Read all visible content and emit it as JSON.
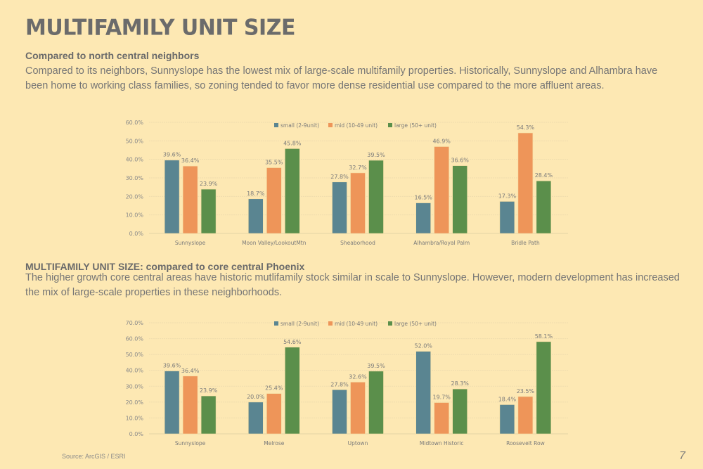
{
  "page": {
    "title": "MULTIFAMILY UNIT SIZE",
    "section1": {
      "heading": "Compared to north central neighbors",
      "text": "Compared to its neighbors, Sunnyslope has the lowest mix of large-scale multifamily properties. Historically, Sunnyslope and Alhambra have been home to working class families, so zoning tended to favor more dense residential use compared to the more affluent areas."
    },
    "section2": {
      "heading": "MULTIFAMILY UNIT SIZE: compared to core central Phoenix",
      "text": "The higher growth core central areas have historic mutlifamily stock similar in scale to Sunnyslope. However, modern development has increased the mix of large-scale properties in these neighborhoods."
    },
    "source": "Source: ArcGIS / ESRI",
    "page_number": "7"
  },
  "colors": {
    "small": "#5a8591",
    "mid": "#ee9559",
    "large": "#5b8f4b",
    "background": "#fde8b3"
  },
  "chart_data": [
    {
      "type": "bar",
      "title": "",
      "xlabel": "",
      "ylabel": "",
      "ylim": [
        0,
        60
      ],
      "yticks": [
        "0.0%",
        "10.0%",
        "20.0%",
        "30.0%",
        "40.0%",
        "50.0%",
        "60.0%"
      ],
      "ytick_values": [
        0,
        10,
        20,
        30,
        40,
        50,
        60
      ],
      "legend_position": "top-center",
      "grid": true,
      "categories": [
        "Sunnyslope",
        "Moon Valley/LookoutMtn",
        "Sheaborhood",
        "Alhambra/Royal Palm",
        "Bridle Path"
      ],
      "series": [
        {
          "name": "small (2-9unit)",
          "key": "small",
          "values": [
            39.6,
            18.7,
            27.8,
            16.5,
            17.3
          ],
          "labels": [
            "39.6%",
            "18.7%",
            "27.8%",
            "16.5%",
            "17.3%"
          ]
        },
        {
          "name": "mid (10-49 unit)",
          "key": "mid",
          "values": [
            36.4,
            35.5,
            32.7,
            46.9,
            54.3
          ],
          "labels": [
            "36.4%",
            "35.5%",
            "32.7%",
            "46.9%",
            "54.3%"
          ]
        },
        {
          "name": "large (50+ unit)",
          "key": "large",
          "values": [
            23.9,
            45.8,
            39.5,
            36.6,
            28.4
          ],
          "labels": [
            "23.9%",
            "45.8%",
            "39.5%",
            "36.6%",
            "28.4%"
          ]
        }
      ]
    },
    {
      "type": "bar",
      "title": "",
      "xlabel": "",
      "ylabel": "",
      "ylim": [
        0,
        70
      ],
      "yticks": [
        "0.0%",
        "10.0%",
        "20.0%",
        "30.0%",
        "40.0%",
        "50.0%",
        "60.0%",
        "70.0%"
      ],
      "ytick_values": [
        0,
        10,
        20,
        30,
        40,
        50,
        60,
        70
      ],
      "legend_position": "top-center",
      "grid": true,
      "categories": [
        "Sunnyslope",
        "Melrose",
        "Uptown",
        "Midtown Historic",
        "Roosevelt Row"
      ],
      "series": [
        {
          "name": "small (2-9unit)",
          "key": "small",
          "values": [
            39.6,
            20.0,
            27.8,
            52.0,
            18.4
          ],
          "labels": [
            "39.6%",
            "20.0%",
            "27.8%",
            "52.0%",
            "18.4%"
          ]
        },
        {
          "name": "mid (10-49 unit)",
          "key": "mid",
          "values": [
            36.4,
            25.4,
            32.6,
            19.7,
            23.5
          ],
          "labels": [
            "36.4%",
            "25.4%",
            "32.6%",
            "19.7%",
            "23.5%"
          ]
        },
        {
          "name": "large (50+ unit)",
          "key": "large",
          "values": [
            23.9,
            54.6,
            39.5,
            28.3,
            58.1
          ],
          "labels": [
            "23.9%",
            "54.6%",
            "39.5%",
            "28.3%",
            "58.1%"
          ]
        }
      ]
    }
  ]
}
